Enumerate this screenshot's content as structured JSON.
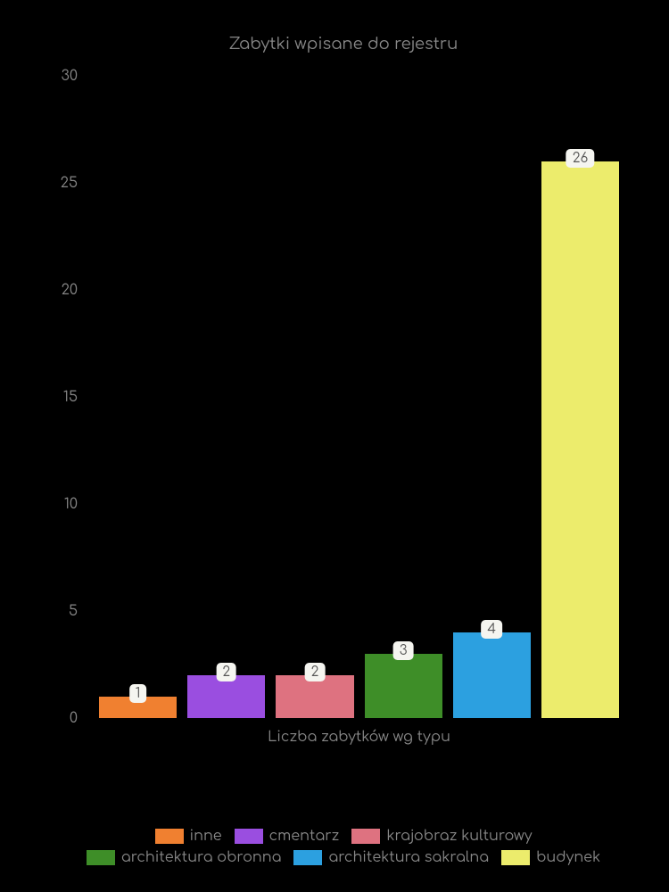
{
  "chart": {
    "type": "bar",
    "title": "Zabytki wpisane do rejestru",
    "title_fontsize": 18,
    "title_color": "#888888",
    "background_color": "#000000",
    "x_label": "Liczba zabytków wg typu",
    "label_fontsize": 16,
    "label_color": "#888888",
    "ylim": [
      0,
      30
    ],
    "ytick_step": 5,
    "yticks": [
      0,
      5,
      10,
      15,
      20,
      25,
      30
    ],
    "series": [
      {
        "name": "inne",
        "value": 1,
        "color": "#f08030"
      },
      {
        "name": "cmentarz",
        "value": 2,
        "color": "#9a4ee0"
      },
      {
        "name": "krajobraz kulturowy",
        "value": 2,
        "color": "#de7280"
      },
      {
        "name": "architektura obronna",
        "value": 3,
        "color": "#3e8e28"
      },
      {
        "name": "architektura sakralna",
        "value": 4,
        "color": "#2ca0e0"
      },
      {
        "name": "budynek",
        "value": 26,
        "color": "#ecec6c"
      }
    ],
    "value_label_bg": "#f5f5f0",
    "value_label_color": "#555555",
    "bar_width": 0.85
  }
}
